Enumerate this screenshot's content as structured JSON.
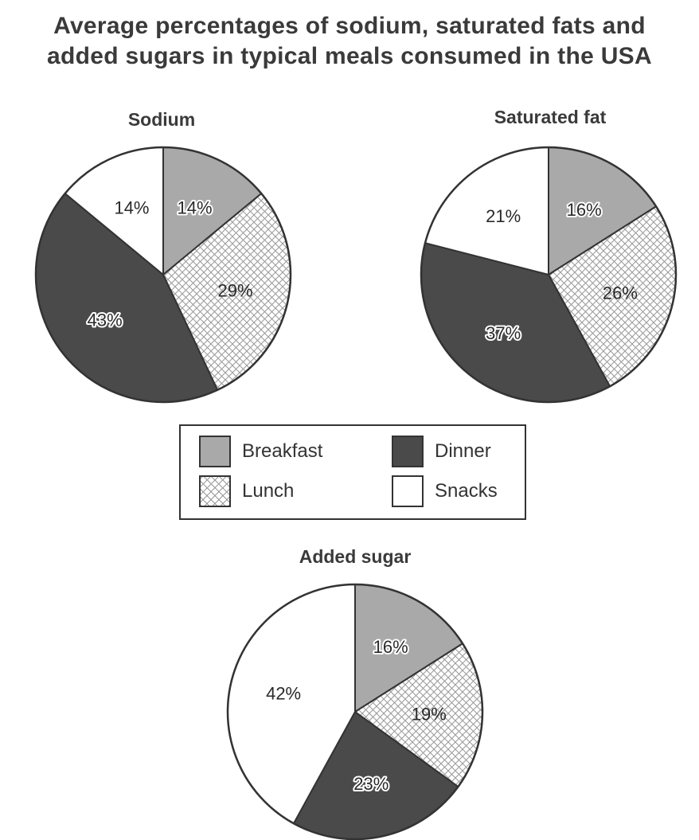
{
  "title": {
    "line1": "Average percentages of sodium, saturated fats and",
    "line2": "added sugars in typical meals consumed in the USA"
  },
  "colors": {
    "breakfast": "#a9a9a9",
    "dinner": "#4a4a4a",
    "lunch_bg": "#ffffff",
    "lunch_hatch": "#9a9a9a",
    "snacks": "#ffffff",
    "outline": "#333333"
  },
  "legend": {
    "items": [
      {
        "name": "Breakfast",
        "key": "breakfast"
      },
      {
        "name": "Lunch",
        "key": "lunch"
      },
      {
        "name": "Dinner",
        "key": "dinner"
      },
      {
        "name": "Snacks",
        "key": "snacks"
      }
    ],
    "placement": "center"
  },
  "chart_data": [
    {
      "type": "pie",
      "title": "Sodium",
      "categories": [
        "Breakfast",
        "Lunch",
        "Dinner",
        "Snacks"
      ],
      "values": [
        14,
        29,
        43,
        14
      ],
      "labels": [
        "14%",
        "29%",
        "43%",
        "14%"
      ],
      "unit": "%"
    },
    {
      "type": "pie",
      "title": "Saturated fat",
      "categories": [
        "Breakfast",
        "Lunch",
        "Dinner",
        "Snacks"
      ],
      "values": [
        16,
        26,
        37,
        21
      ],
      "labels": [
        "16%",
        "26%",
        "37%",
        "21%"
      ],
      "unit": "%"
    },
    {
      "type": "pie",
      "title": "Added sugar",
      "categories": [
        "Breakfast",
        "Lunch",
        "Dinner",
        "Snacks"
      ],
      "values": [
        16,
        19,
        23,
        42
      ],
      "labels": [
        "16%",
        "19%",
        "23%",
        "42%"
      ],
      "unit": "%"
    }
  ]
}
